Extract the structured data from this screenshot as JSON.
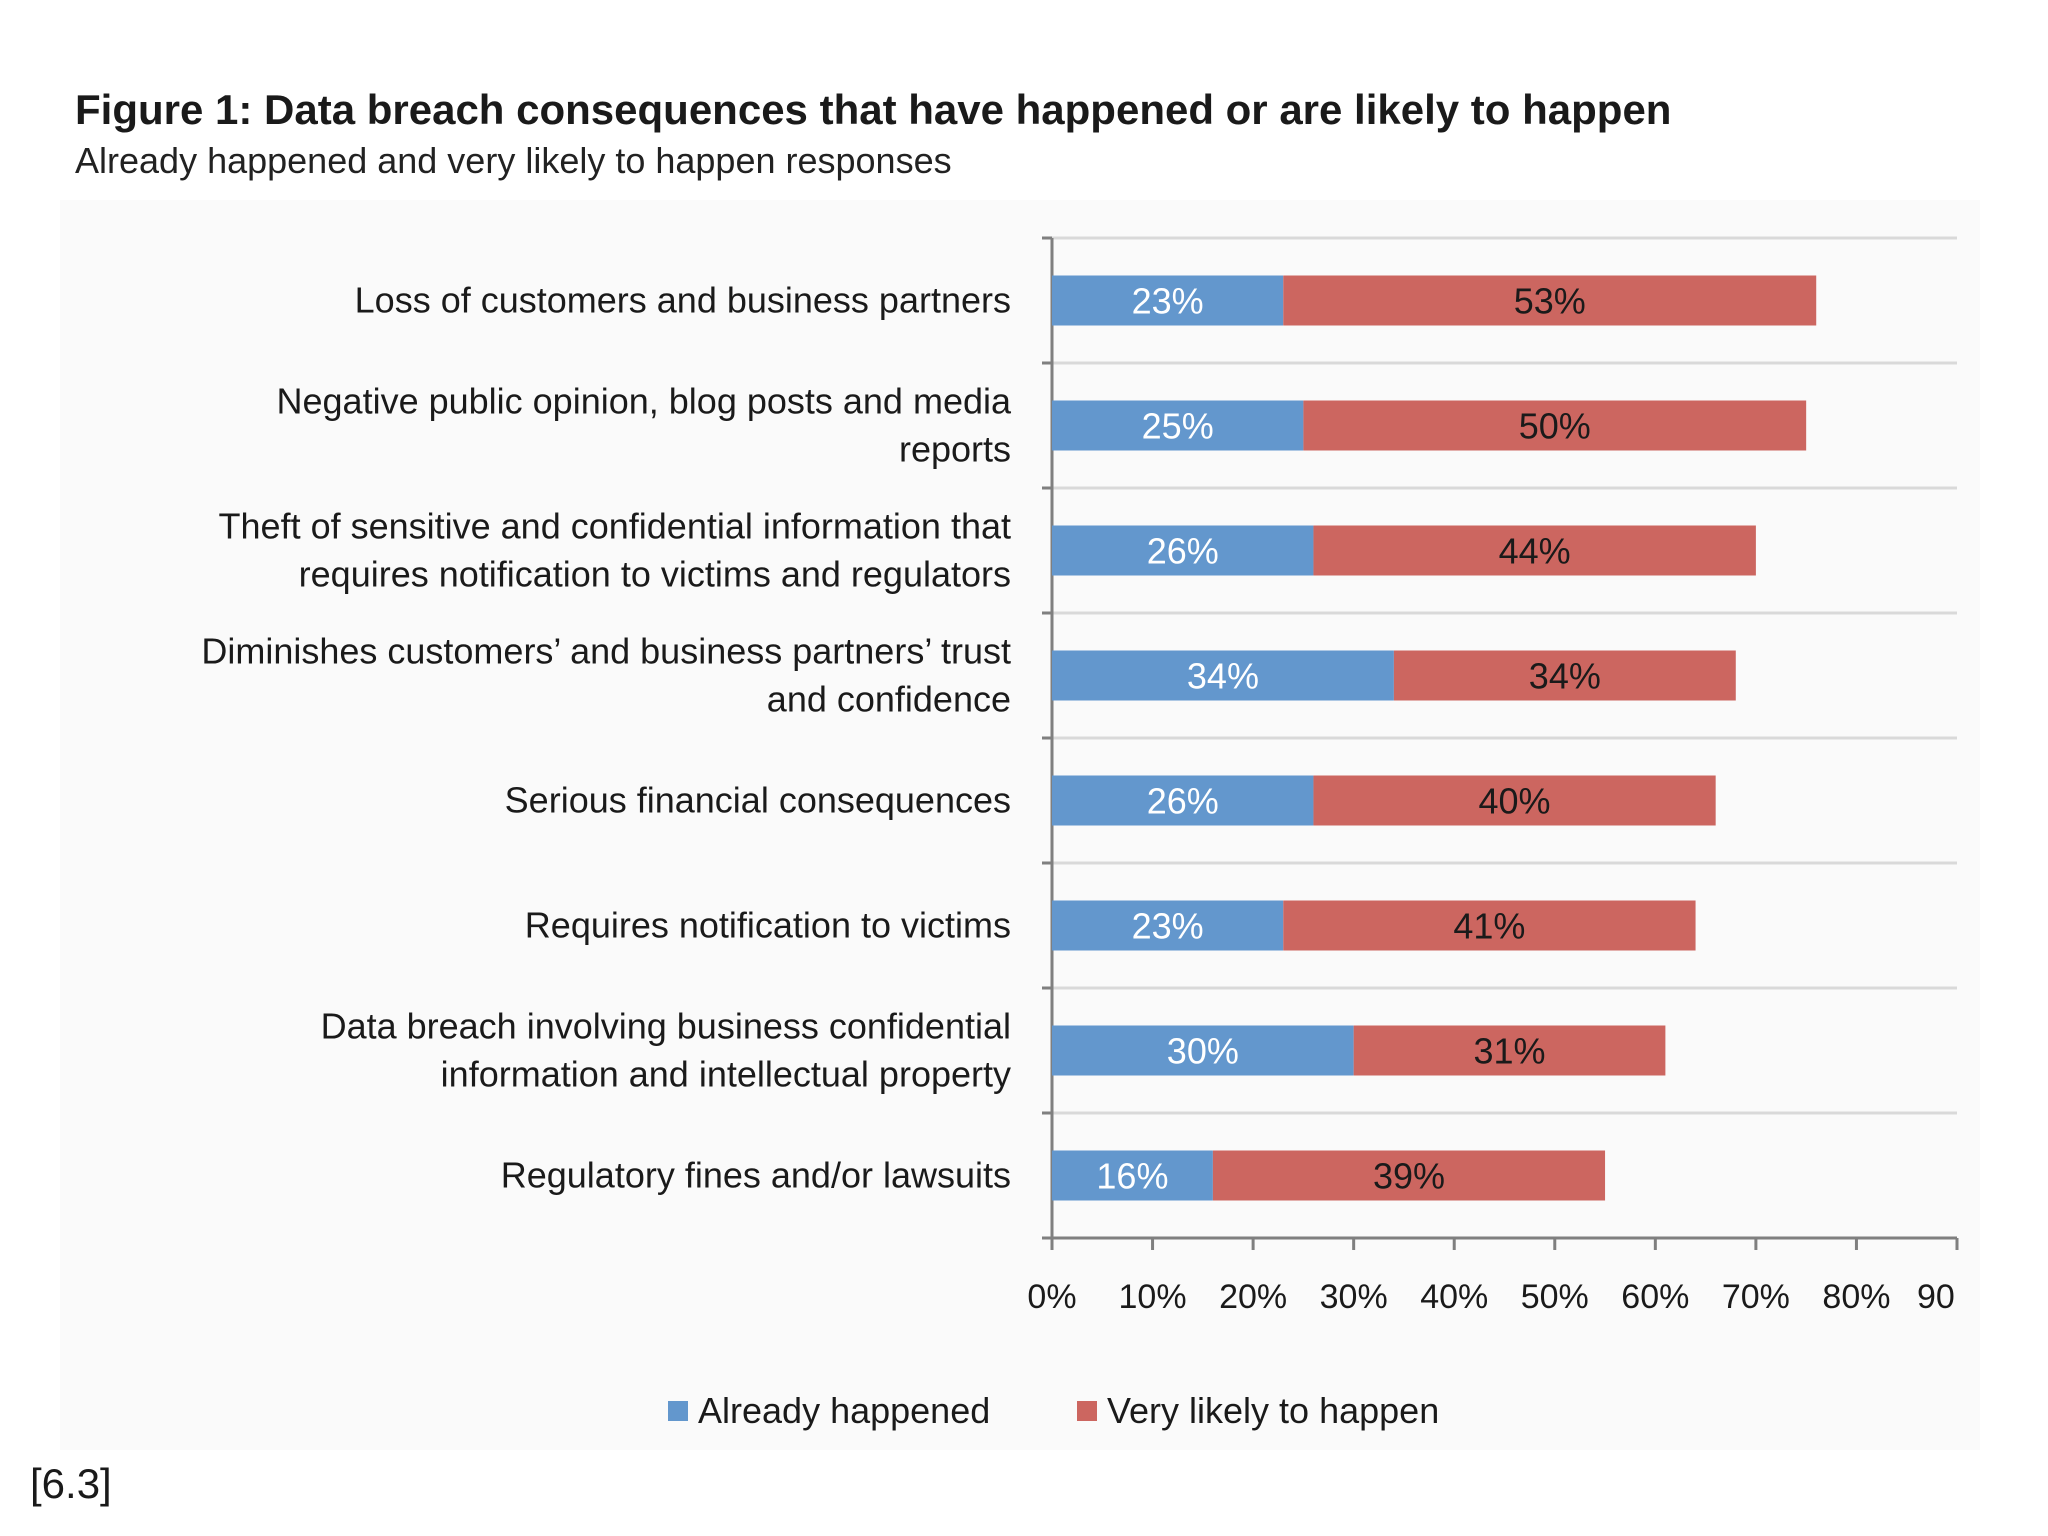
{
  "header": {
    "title": "Figure 1: Data breach consequences that have happened or are likely to happen",
    "subtitle": "Already happened and very likely to happen responses"
  },
  "footnote": "[6.3]",
  "colors": {
    "already": "#6397cd",
    "likely": "#cc6660",
    "grid": "#d9d9d9",
    "axis": "#7f7f7f",
    "value_text": "#ffffff",
    "value_text_dark": "#1a1a1a"
  },
  "chart_data": {
    "type": "bar",
    "orientation": "horizontal",
    "stacked": true,
    "title": "Figure 1: Data breach consequences that have happened or are likely to happen",
    "subtitle": "Already happened and very likely to happen responses",
    "categories": [
      [
        "Loss of customers and business partners"
      ],
      [
        "Negative public opinion, blog posts and media",
        "reports"
      ],
      [
        "Theft of sensitive and confidential information that",
        "requires notification to victims and regulators"
      ],
      [
        "Diminishes customers’ and business partners’ trust",
        "and confidence"
      ],
      [
        "Serious financial consequences"
      ],
      [
        "Requires notification to victims"
      ],
      [
        "Data breach involving business confidential",
        "information and intellectual property"
      ],
      [
        "Regulatory fines and/or lawsuits"
      ]
    ],
    "series": [
      {
        "name": "Already happened",
        "values": [
          23,
          25,
          26,
          34,
          26,
          23,
          30,
          16
        ],
        "labels": [
          "23%",
          "25%",
          "26%",
          "34%",
          "26%",
          "23%",
          "30%",
          "16%"
        ]
      },
      {
        "name": "Very likely to happen",
        "values": [
          53,
          50,
          44,
          34,
          40,
          41,
          31,
          39
        ],
        "labels": [
          "53%",
          "50%",
          "44%",
          "34%",
          "40%",
          "41%",
          "31%",
          "39%"
        ]
      }
    ],
    "x_ticks": [
      "0%",
      "10%",
      "20%",
      "30%",
      "40%",
      "50%",
      "60%",
      "70%",
      "80%",
      "90"
    ],
    "xlim": [
      0,
      90
    ],
    "xlabel": "",
    "ylabel": "",
    "grid": true,
    "legend_position": "bottom"
  }
}
